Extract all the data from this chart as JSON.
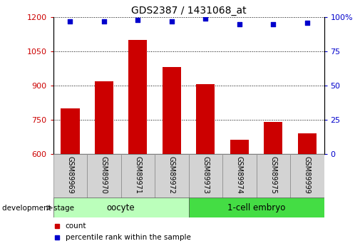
{
  "title": "GDS2387 / 1431068_at",
  "samples": [
    "GSM89969",
    "GSM89970",
    "GSM89971",
    "GSM89972",
    "GSM89973",
    "GSM89974",
    "GSM89975",
    "GSM89999"
  ],
  "counts": [
    800,
    920,
    1100,
    980,
    905,
    660,
    740,
    690
  ],
  "percentile_ranks": [
    97,
    97,
    98,
    97,
    99,
    95,
    95,
    96
  ],
  "ylim_left": [
    600,
    1200
  ],
  "ylim_right": [
    0,
    100
  ],
  "yticks_left": [
    600,
    750,
    900,
    1050,
    1200
  ],
  "yticks_right": [
    0,
    25,
    50,
    75,
    100
  ],
  "groups": [
    {
      "label": "oocyte",
      "indices": [
        0,
        1,
        2,
        3
      ],
      "color": "#BBFFBB"
    },
    {
      "label": "1-cell embryo",
      "indices": [
        4,
        5,
        6,
        7
      ],
      "color": "#44DD44"
    }
  ],
  "bar_color": "#CC0000",
  "dot_color": "#0000CC",
  "bar_width": 0.55,
  "grid_color": "#000000",
  "left_label_color": "#CC0000",
  "right_label_color": "#0000CC",
  "legend_items": [
    {
      "color": "#CC0000",
      "label": "count"
    },
    {
      "color": "#0000CC",
      "label": "percentile rank within the sample"
    }
  ],
  "development_stage_label": "development stage"
}
